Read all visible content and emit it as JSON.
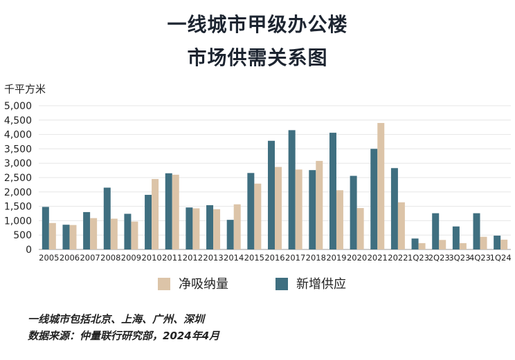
{
  "title_line1": "一线城市甲级办公楼",
  "title_line2": "市场供需关系图",
  "chart_data": {
    "type": "bar",
    "ylabel": "千平方米",
    "ylim": [
      0,
      5000
    ],
    "ytick_labels": [
      "0",
      "500",
      "1,000",
      "1,500",
      "2,000",
      "2,500",
      "3,000",
      "3,500",
      "4,000",
      "4,500",
      "5,000"
    ],
    "categories": [
      "2005",
      "2006",
      "2007",
      "2008",
      "2009",
      "2010",
      "2011",
      "2012",
      "2013",
      "2014",
      "2015",
      "2016",
      "2017",
      "2018",
      "2019",
      "2020",
      "2021",
      "2022",
      "1Q23",
      "2Q23",
      "3Q23",
      "4Q23",
      "1Q24"
    ],
    "series": [
      {
        "name": "新增供应",
        "color": "#3f6f80",
        "values": [
          1480,
          860,
          1300,
          2150,
          1240,
          1900,
          2650,
          1460,
          1540,
          1030,
          2660,
          3780,
          4150,
          2760,
          4060,
          2560,
          3500,
          2830,
          380,
          1260,
          800,
          1260,
          480
        ]
      },
      {
        "name": "净吸纳量",
        "color": "#dcc4a8",
        "values": [
          920,
          850,
          1090,
          1070,
          970,
          2450,
          2600,
          1430,
          1400,
          1570,
          2290,
          2870,
          2780,
          3080,
          2060,
          1440,
          4400,
          1640,
          220,
          330,
          220,
          440,
          340
        ]
      }
    ]
  },
  "legend": {
    "absorption": "净吸纳量",
    "supply": "新增供应"
  },
  "notes": {
    "line1": "一线城市包括北京、上海、广州、深圳",
    "line2": "数据来源：仲量联行研究部，2024年4月"
  }
}
